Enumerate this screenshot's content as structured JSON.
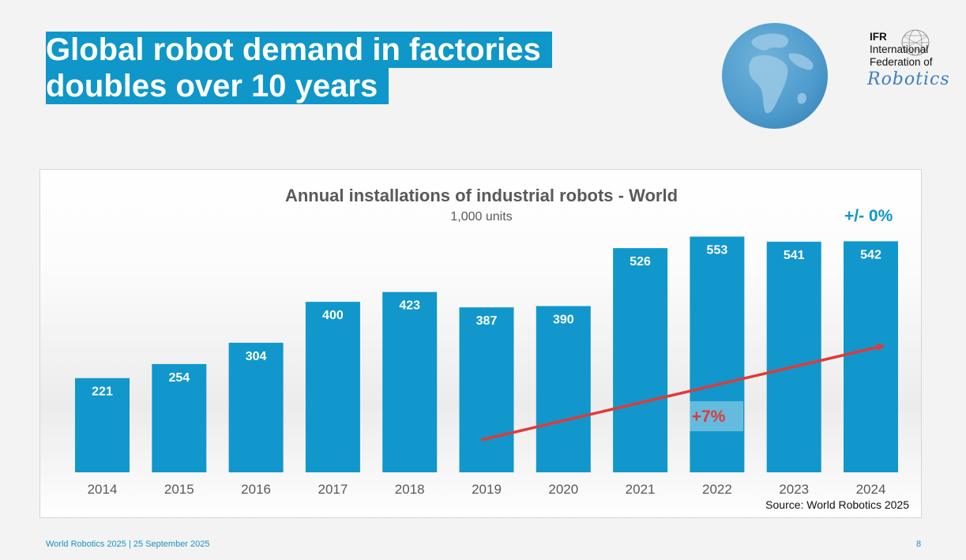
{
  "slide": {
    "title_line1": "Global robot demand in factories",
    "title_line2": "doubles over 10 years"
  },
  "logo": {
    "abbr": "IFR",
    "line1": "International",
    "line2": "Federation of",
    "script": "Robotics"
  },
  "icons": [
    "globe-icon",
    "ifr-logo-icon"
  ],
  "colors": {
    "accent": "#0e97c8",
    "bar": "#1197cb",
    "trend_arrow": "#e03a3a",
    "footer_text": "#1b8fc4"
  },
  "chart_data": {
    "type": "bar",
    "title": "Annual installations of industrial robots - World",
    "subtitle": "1,000 units",
    "categories": [
      "2014",
      "2015",
      "2016",
      "2017",
      "2018",
      "2019",
      "2020",
      "2021",
      "2022",
      "2023",
      "2024"
    ],
    "values": [
      221,
      254,
      304,
      400,
      423,
      387,
      390,
      526,
      553,
      541,
      542
    ],
    "ylim": [
      0,
      580
    ],
    "grid": false,
    "data_labels": true,
    "annotations": {
      "change_label": "+/- 0%",
      "trend_label": "+7%",
      "trend_from": "2019",
      "trend_to": "2024"
    },
    "source": "Source: World Robotics 2025"
  },
  "footer": {
    "left": "World Robotics 2025  | 25 September 2025",
    "page": "8"
  }
}
